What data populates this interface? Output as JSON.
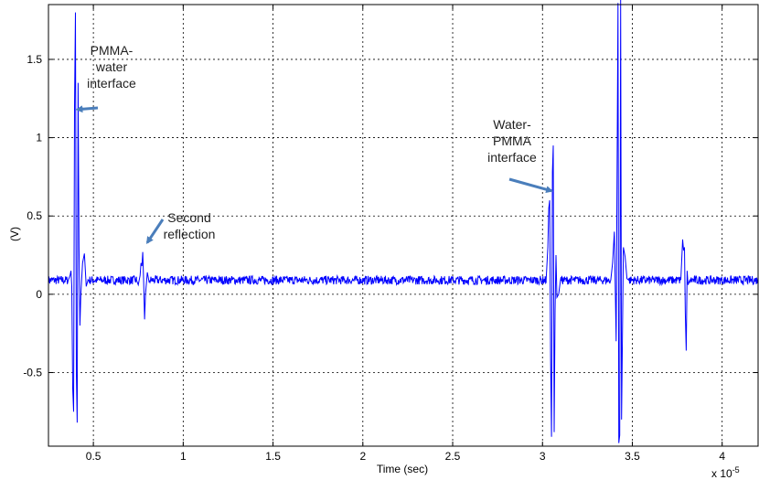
{
  "chart_data": {
    "type": "line",
    "xlabel": "Time (sec)",
    "ylabel": "(V)",
    "x_multiplier": "x 10",
    "x_multiplier_exp": "-5",
    "xlim": [
      0.25,
      4.2
    ],
    "ylim": [
      -0.97,
      1.85
    ],
    "xticks": [
      0.5,
      1,
      1.5,
      2,
      2.5,
      3,
      3.5,
      4
    ],
    "xtick_labels": [
      "0.5",
      "1",
      "1.5",
      "2",
      "2.5",
      "3",
      "3.5",
      "4"
    ],
    "yticks": [
      -0.5,
      0,
      0.5,
      1,
      1.5
    ],
    "ytick_labels": [
      "-0.5",
      "0",
      "0.5",
      "1",
      "1.5"
    ],
    "grid": true,
    "line_color": "#0000ff",
    "baseline_v": 0.09,
    "noise_v": 0.028,
    "series": [
      {
        "points": [
          [
            0.36,
            0.09
          ],
          [
            0.37,
            0.12
          ],
          [
            0.375,
            0.15
          ],
          [
            0.38,
            0.05
          ],
          [
            0.385,
            -0.6
          ],
          [
            0.39,
            -0.75
          ],
          [
            0.395,
            1.2
          ],
          [
            0.4,
            1.8
          ],
          [
            0.405,
            -0.5
          ],
          [
            0.41,
            -0.82
          ],
          [
            0.415,
            1.35
          ],
          [
            0.42,
            0.3
          ],
          [
            0.425,
            -0.2
          ],
          [
            0.43,
            0.0
          ],
          [
            0.44,
            0.2
          ],
          [
            0.45,
            0.26
          ],
          [
            0.46,
            0.05
          ],
          [
            0.47,
            0.09
          ],
          [
            0.74,
            0.09
          ],
          [
            0.75,
            0.06
          ],
          [
            0.76,
            0.12
          ],
          [
            0.765,
            0.2
          ],
          [
            0.77,
            0.18
          ],
          [
            0.775,
            0.27
          ],
          [
            0.78,
            0.08
          ],
          [
            0.785,
            -0.16
          ],
          [
            0.79,
            0.0
          ],
          [
            0.8,
            0.14
          ],
          [
            0.81,
            0.08
          ],
          [
            3.02,
            0.09
          ],
          [
            3.03,
            0.3
          ],
          [
            3.035,
            0.55
          ],
          [
            3.04,
            0.6
          ],
          [
            3.045,
            -0.4
          ],
          [
            3.05,
            -0.91
          ],
          [
            3.055,
            0.78
          ],
          [
            3.06,
            0.95
          ],
          [
            3.065,
            -0.88
          ],
          [
            3.07,
            -0.1
          ],
          [
            3.075,
            0.25
          ],
          [
            3.08,
            -0.02
          ],
          [
            3.09,
            0.0
          ],
          [
            3.1,
            0.09
          ],
          [
            3.38,
            0.09
          ],
          [
            3.39,
            0.2
          ],
          [
            3.4,
            0.4
          ],
          [
            3.41,
            -0.3
          ],
          [
            3.42,
            1.86
          ],
          [
            3.425,
            -0.95
          ],
          [
            3.43,
            -0.9
          ],
          [
            3.435,
            1.88
          ],
          [
            3.44,
            -0.8
          ],
          [
            3.45,
            0.3
          ],
          [
            3.46,
            0.24
          ],
          [
            3.47,
            0.1
          ],
          [
            3.48,
            0.09
          ],
          [
            3.77,
            0.09
          ],
          [
            3.78,
            0.35
          ],
          [
            3.785,
            0.28
          ],
          [
            3.79,
            0.3
          ],
          [
            3.795,
            -0.12
          ],
          [
            3.8,
            -0.36
          ],
          [
            3.805,
            0.15
          ],
          [
            3.81,
            0.06
          ],
          [
            3.82,
            0.09
          ]
        ]
      }
    ],
    "annotations": [
      {
        "text": [
          "PMMA-",
          "water",
          "interface"
        ],
        "arrow_to": [
          0.4,
          1.18
        ]
      },
      {
        "text": [
          "Second",
          "reflection"
        ],
        "arrow_to": [
          0.79,
          0.33
        ]
      },
      {
        "text": [
          "Water-",
          "PMMA",
          "interface"
        ],
        "arrow_to": [
          3.04,
          0.66
        ]
      }
    ]
  }
}
